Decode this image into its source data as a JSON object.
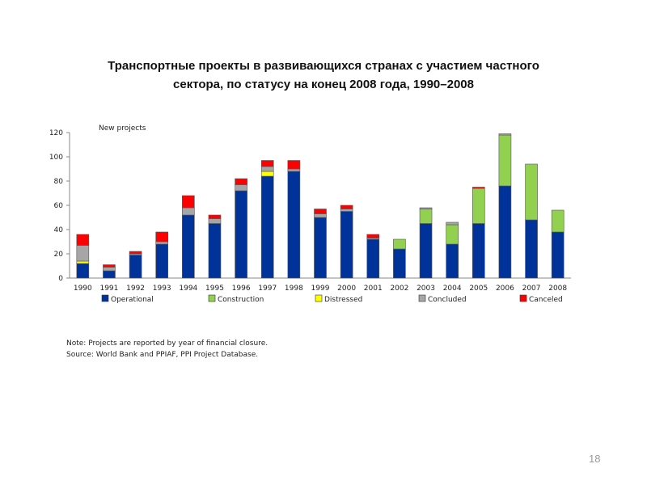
{
  "title_line1": "Транспортные проекты в развивающихся странах с участием частного",
  "title_line2": "сектора,  по статусу на конец 2008 года, 1990–2008",
  "note": "Note: Projects are reported by year of financial closure.",
  "source": "Source: World Bank and PPIAF, PPI Project Database.",
  "page_number": "18",
  "chart_data": {
    "type": "bar",
    "stacked": true,
    "ylabel": "New projects",
    "ylim": [
      0,
      120
    ],
    "yticks": [
      0,
      20,
      40,
      60,
      80,
      100,
      120
    ],
    "categories": [
      "1990",
      "1991",
      "1992",
      "1993",
      "1994",
      "1995",
      "1996",
      "1997",
      "1998",
      "1999",
      "2000",
      "2001",
      "2002",
      "2003",
      "2004",
      "2005",
      "2006",
      "2007",
      "2008"
    ],
    "series": [
      {
        "name": "Operational",
        "color": "#003399",
        "values": [
          12,
          6,
          19,
          28,
          52,
          45,
          72,
          84,
          88,
          50,
          55,
          32,
          24,
          45,
          28,
          45,
          76,
          48,
          38
        ]
      },
      {
        "name": "Construction",
        "color": "#92d050",
        "values": [
          0,
          0,
          0,
          0,
          0,
          0,
          0,
          0,
          0,
          0,
          0,
          0,
          8,
          12,
          16,
          29,
          42,
          46,
          18
        ]
      },
      {
        "name": "Distressed",
        "color": "#ffff00",
        "values": [
          2,
          0,
          0,
          0,
          0,
          0,
          0,
          4,
          0,
          0,
          0,
          0,
          0,
          0,
          0,
          0,
          0,
          0,
          0
        ]
      },
      {
        "name": "Concluded",
        "color": "#a6a6a6",
        "values": [
          13,
          3,
          1,
          2,
          6,
          4,
          5,
          4,
          2,
          3,
          2,
          1,
          0,
          1,
          2,
          0,
          1,
          0,
          0
        ]
      },
      {
        "name": "Canceled",
        "color": "#ff0000",
        "values": [
          9,
          2,
          2,
          8,
          10,
          3,
          5,
          5,
          7,
          4,
          3,
          3,
          0,
          0,
          0,
          1,
          0,
          0,
          0
        ]
      }
    ],
    "legend_position": "bottom"
  }
}
